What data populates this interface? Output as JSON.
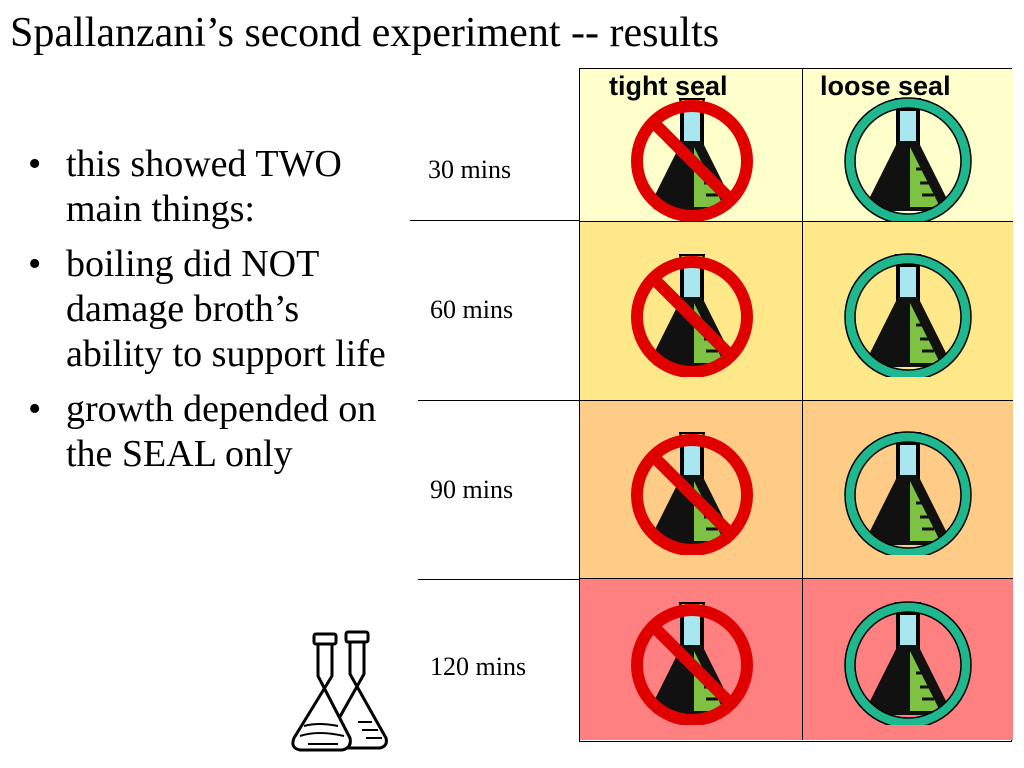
{
  "slide": {
    "title": "Spallanzani’s second experiment -- results",
    "bullets": [
      {
        "marker": "•",
        "text": "this showed TWO main things:"
      },
      {
        "marker": "•",
        "text": "boiling did NOT damage broth’s ability to support life"
      },
      {
        "marker": "•",
        "text": "growth depended on the SEAL only"
      }
    ]
  },
  "table": {
    "columns": [
      "tight seal",
      "loose seal"
    ],
    "rows": [
      {
        "label": "30 mins",
        "color": "#FFFFCC",
        "tight_icon": "prohibited-flask-icon",
        "loose_icon": "approved-flask-icon"
      },
      {
        "label": "60 mins",
        "color": "#FFE88A",
        "tight_icon": "prohibited-flask-icon",
        "loose_icon": "approved-flask-icon"
      },
      {
        "label": "90 mins",
        "color": "#FFCC88",
        "tight_icon": "prohibited-flask-icon",
        "loose_icon": "approved-flask-icon"
      },
      {
        "label": "120 mins",
        "color": "#FF8080",
        "tight_icon": "prohibited-flask-icon",
        "loose_icon": "approved-flask-icon"
      }
    ],
    "colors": {
      "prohibited": "#E00000",
      "approved": "#1FB88E",
      "broth": "#7DC242",
      "glass": "#A8E6F0"
    }
  },
  "decorations": {
    "clipart_icon": "lab-flasks-icon"
  }
}
